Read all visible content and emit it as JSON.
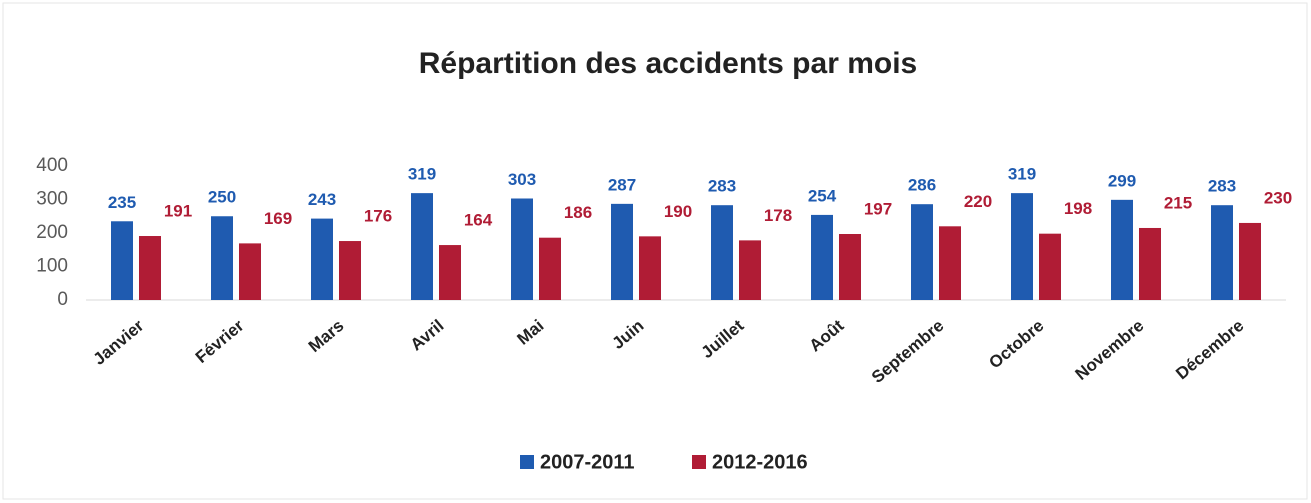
{
  "chart_data": {
    "type": "bar",
    "title": "Répartition des accidents par mois",
    "categories": [
      "Janvier",
      "Février",
      "Mars",
      "Avril",
      "Mai",
      "Juin",
      "Juillet",
      "Août",
      "Septembre",
      "Octobre",
      "Novembre",
      "Décembre"
    ],
    "series": [
      {
        "name": "2007-2011",
        "color": "#1f5bb0",
        "values": [
          235,
          250,
          243,
          319,
          303,
          287,
          283,
          254,
          286,
          319,
          299,
          283
        ]
      },
      {
        "name": "2012-2016",
        "color": "#b01c35",
        "values": [
          191,
          169,
          176,
          164,
          186,
          190,
          178,
          197,
          220,
          198,
          215,
          230
        ]
      }
    ],
    "ylim": [
      0,
      400
    ],
    "yticks": [
      0,
      100,
      200,
      300,
      400
    ],
    "legend": "bottom"
  }
}
